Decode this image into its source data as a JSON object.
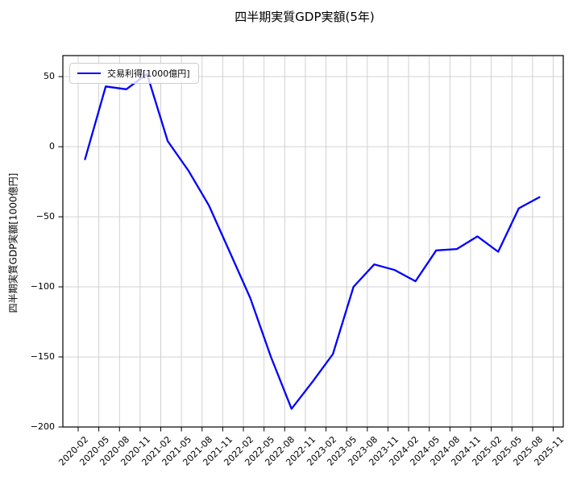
{
  "chart": {
    "title": "四半期実質GDP実額(5年)",
    "ylabel": "四半期実質GDP実額[1000億円]",
    "legend_label": "交易利得[1000億円]",
    "colors": {
      "line": "#0000ff",
      "grid": "#cccccc",
      "spine": "#000000",
      "tick": "#000000",
      "legend_border": "#cccccc",
      "background": "#ffffff"
    }
  },
  "chart_data": {
    "type": "line",
    "title": "四半期実質GDP実額(5年)",
    "xlabel": "",
    "ylabel": "四半期実質GDP実額[1000億円]",
    "legend": [
      "交易利得[1000億円]"
    ],
    "legend_position": "upper left",
    "grid": true,
    "ylim": [
      -200,
      65
    ],
    "ytick_values": [
      50,
      0,
      -50,
      -100,
      -150,
      -200
    ],
    "ytick_labels": [
      "50",
      "0",
      "−50",
      "−100",
      "−150",
      "−200"
    ],
    "xtick_labels": [
      "2020-02",
      "2020-05",
      "2020-08",
      "2020-11",
      "2021-02",
      "2021-05",
      "2021-08",
      "2021-11",
      "2022-02",
      "2022-05",
      "2022-08",
      "2022-11",
      "2023-02",
      "2023-05",
      "2023-08",
      "2023-11",
      "2024-02",
      "2024-05",
      "2024-08",
      "2024-11",
      "2025-02",
      "2025-05",
      "2025-08",
      "2025-11"
    ],
    "x": [
      "2020-03",
      "2020-06",
      "2020-09",
      "2020-12",
      "2021-03",
      "2021-06",
      "2021-09",
      "2021-12",
      "2022-03",
      "2022-06",
      "2022-09",
      "2022-12",
      "2023-03",
      "2023-06",
      "2023-09",
      "2023-12",
      "2024-03",
      "2024-06",
      "2024-09",
      "2024-12",
      "2025-03",
      "2025-06",
      "2025-09"
    ],
    "series": [
      {
        "name": "交易利得[1000億円]",
        "values": [
          -9,
          43,
          41,
          52,
          4,
          -17,
          -42,
          -75,
          -108,
          -150,
          -187,
          -168,
          -148,
          -100,
          -84,
          -88,
          -96,
          -74,
          -73,
          -64,
          -75,
          -44,
          -36
        ]
      }
    ]
  }
}
